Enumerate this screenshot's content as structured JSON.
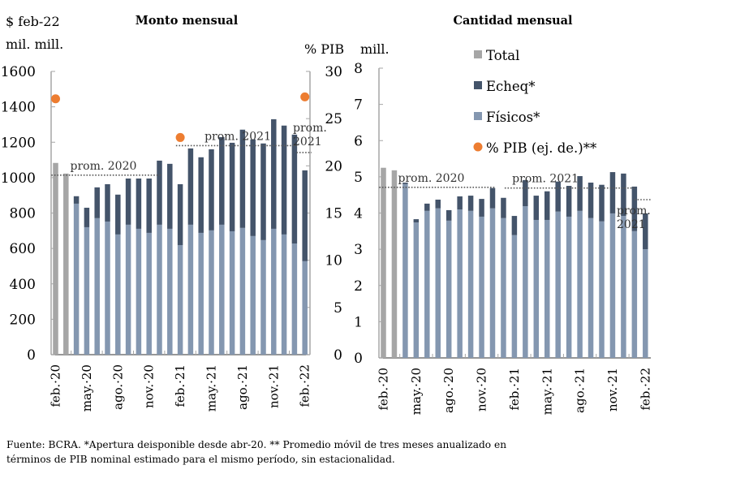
{
  "colors": {
    "total": "#a6a6a6",
    "echeq": "#44546a",
    "fisicos": "#8497b0",
    "pib": "#ed7d31",
    "axis": "#a6a6a6",
    "avg_line": "#595959"
  },
  "chart_data": [
    {
      "type": "bar",
      "stacked": true,
      "title": "Monto mensual",
      "ylabel_line1": "$ feb-22",
      "ylabel_line2": "mil. mill.",
      "y2label": "% PIB",
      "ylim": [
        0,
        1600
      ],
      "yticks": [
        "0",
        "200",
        "400",
        "600",
        "800",
        "1000",
        "1200",
        "1400",
        "1600"
      ],
      "y2lim": [
        0,
        30
      ],
      "y2ticks": [
        "0",
        "5",
        "10",
        "15",
        "20",
        "25",
        "30"
      ],
      "categories": [
        "feb-20",
        "mar-20",
        "abr-20",
        "may-20",
        "jun-20",
        "jul-20",
        "ago-20",
        "sep-20",
        "oct-20",
        "nov-20",
        "dic-20",
        "ene-21",
        "feb-21",
        "mar-21",
        "abr-21",
        "may-21",
        "jun-21",
        "jul-21",
        "ago-21",
        "sep-21",
        "oct-21",
        "nov-21",
        "dic-21",
        "ene-22",
        "feb-22"
      ],
      "xtick_labels": [
        "feb. 20",
        "may. 20",
        "ago. 20",
        "nov. 20",
        "feb. 21",
        "may. 21",
        "ago. 21",
        "nov. 21",
        "feb. 22"
      ],
      "xtick_indices": [
        0,
        3,
        6,
        9,
        12,
        15,
        18,
        21,
        24
      ],
      "series": [
        {
          "name": "Total",
          "values": [
            1083,
            1023,
            null,
            null,
            null,
            null,
            null,
            null,
            null,
            null,
            null,
            null,
            null,
            null,
            null,
            null,
            null,
            null,
            null,
            null,
            null,
            null,
            null,
            null,
            null
          ]
        },
        {
          "name": "Físicos*",
          "values": [
            null,
            null,
            853,
            720,
            771,
            752,
            679,
            734,
            711,
            688,
            734,
            711,
            619,
            734,
            688,
            702,
            734,
            697,
            716,
            670,
            647,
            711,
            679,
            628,
            528
          ]
        },
        {
          "name": "Echeq*",
          "values": [
            null,
            null,
            42,
            110,
            174,
            211,
            225,
            261,
            284,
            307,
            362,
            367,
            344,
            431,
            427,
            458,
            495,
            500,
            555,
            546,
            546,
            619,
            615,
            615,
            513
          ]
        },
        {
          "name": "% PIB (ej. de.)**",
          "axis": "right",
          "points": [
            {
              "index": 0,
              "value": 27.1
            },
            {
              "index": 12,
              "value": 23.0
            },
            {
              "index": 24,
              "value": 27.3
            }
          ]
        }
      ],
      "averages": [
        {
          "label": "prom. 2020",
          "value": 1014,
          "from_index": 0,
          "to_index": 10
        },
        {
          "label": "prom. 2021",
          "value": 1181,
          "from_index": 12,
          "to_index": 23
        },
        {
          "label": "prom. 2021",
          "label_lines": [
            "prom.",
            "2021"
          ],
          "value": 1142,
          "from_index": 23.6,
          "to_index": 24.4
        }
      ]
    },
    {
      "type": "bar",
      "stacked": true,
      "title": "Cantidad mensual",
      "ylabel": "mill.",
      "ylim": [
        0,
        8
      ],
      "yticks": [
        "0",
        "1",
        "2",
        "3",
        "4",
        "5",
        "6",
        "7",
        "8"
      ],
      "categories": [
        "feb-20",
        "mar-20",
        "abr-20",
        "may-20",
        "jun-20",
        "jul-20",
        "ago-20",
        "sep-20",
        "oct-20",
        "nov-20",
        "dic-20",
        "ene-21",
        "feb-21",
        "mar-21",
        "abr-21",
        "may-21",
        "jun-21",
        "jul-21",
        "ago-21",
        "sep-21",
        "oct-21",
        "nov-21",
        "dic-21",
        "ene-22",
        "feb-22"
      ],
      "xtick_labels": [
        "feb. 20",
        "may. 20",
        "ago. 20",
        "nov. 20",
        "feb. 21",
        "may. 21",
        "ago. 21",
        "nov. 21",
        "feb. 22"
      ],
      "xtick_indices": [
        0,
        3,
        6,
        9,
        12,
        15,
        18,
        21,
        24
      ],
      "series": [
        {
          "name": "Total",
          "values": [
            5.25,
            5.18,
            null,
            null,
            null,
            null,
            null,
            null,
            null,
            null,
            null,
            null,
            null,
            null,
            null,
            null,
            null,
            null,
            null,
            null,
            null,
            null,
            null,
            null,
            null
          ]
        },
        {
          "name": "Físicos*",
          "values": [
            null,
            null,
            4.8,
            3.74,
            4.06,
            4.13,
            3.79,
            4.1,
            4.06,
            3.9,
            4.13,
            3.86,
            3.39,
            4.19,
            3.81,
            3.81,
            4.04,
            3.9,
            4.06,
            3.86,
            3.77,
            3.99,
            3.92,
            3.5,
            3.0
          ]
        },
        {
          "name": "Echeq*",
          "values": [
            null,
            null,
            0.04,
            0.09,
            0.2,
            0.24,
            0.29,
            0.36,
            0.42,
            0.49,
            0.56,
            0.56,
            0.53,
            0.72,
            0.67,
            0.79,
            0.83,
            0.85,
            0.96,
            0.98,
            1.01,
            1.14,
            1.17,
            1.23,
            0.99
          ]
        }
      ],
      "averages": [
        {
          "label": "prom. 2020",
          "value": 4.71,
          "from_index": 0,
          "to_index": 10
        },
        {
          "label": "prom. 2021",
          "value": 4.69,
          "from_index": 11.5,
          "to_index": 22.8
        },
        {
          "label": "prom. 2021",
          "label_lines": [
            "prom.",
            "2021"
          ],
          "value": 4.37,
          "from_index": 23.4,
          "to_index": 24.3
        }
      ]
    }
  ],
  "legend": [
    {
      "key": "total",
      "label": "Total",
      "shape": "square"
    },
    {
      "key": "echeq",
      "label": "Echeq*",
      "shape": "square"
    },
    {
      "key": "fisicos",
      "label": "Físicos*",
      "shape": "square"
    },
    {
      "key": "pib",
      "label": "% PIB (ej. de.)**",
      "shape": "circle"
    }
  ],
  "footnote": {
    "line1": "Fuente: BCRA. *Apertura deisponible desde abr-20.  ** Promedio móvil de tres meses anualizado en",
    "line2": "términos de PIB nominal estimado para el mismo período, sin estacionalidad."
  }
}
